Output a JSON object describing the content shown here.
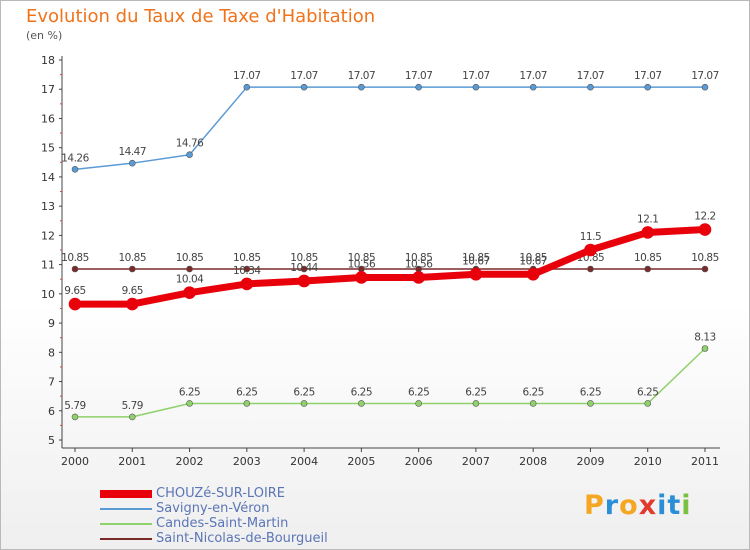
{
  "title": "Evolution du Taux de Taxe d'Habitation",
  "unit_label": "(en %)",
  "brand": {
    "letters": [
      "P",
      "r",
      "o",
      "x",
      "i",
      "t",
      "i"
    ],
    "colors": [
      "#f5a623",
      "#2a8fd6",
      "#f5a623",
      "#e23b2e",
      "#2a8fd6",
      "#2a8fd6",
      "#7ac142"
    ]
  },
  "chart_data": {
    "type": "line",
    "title": "Evolution du Taux de Taxe d'Habitation",
    "ylabel": "(en %)",
    "xlabel": "",
    "ylim": [
      5,
      18
    ],
    "y_ticks": [
      "5",
      "6",
      "7",
      "8",
      "9",
      "10",
      "11",
      "12",
      "13",
      "14",
      "15",
      "16",
      "17",
      "18"
    ],
    "x": [
      "2000",
      "2001",
      "2002",
      "2003",
      "2004",
      "2005",
      "2006",
      "2007",
      "2008",
      "2009",
      "2010",
      "2011"
    ],
    "grid": false,
    "legend_position": "bottom-left",
    "series": [
      {
        "name": "Savigny-en-Véron",
        "color": "#5b9bd5",
        "values": [
          14.26,
          14.47,
          14.76,
          17.07,
          17.07,
          17.07,
          17.07,
          17.07,
          17.07,
          17.07,
          17.07,
          17.07
        ],
        "labels": [
          "14.26",
          "14.47",
          "14.76",
          "17.07",
          "17.07",
          "17.07",
          "17.07",
          "17.07",
          "17.07",
          "17.07",
          "17.07",
          "17.07"
        ]
      },
      {
        "name": "Saint-Nicolas-de-Bourgueil",
        "color": "#7b2a2a",
        "values": [
          10.85,
          10.85,
          10.85,
          10.85,
          10.85,
          10.85,
          10.85,
          10.85,
          10.85,
          10.85,
          10.85,
          10.85
        ],
        "labels": [
          "10.85",
          "10.85",
          "10.85",
          "10.85",
          "10.85",
          "10.85",
          "10.85",
          "10.85",
          "10.85",
          "10.85",
          "10.85",
          "10.85"
        ]
      },
      {
        "name": "Candes-Saint-Martin",
        "color": "#8fd16a",
        "values": [
          5.79,
          5.79,
          6.25,
          6.25,
          6.25,
          6.25,
          6.25,
          6.25,
          6.25,
          6.25,
          6.25,
          8.13
        ],
        "labels": [
          "5.79",
          "5.79",
          "6.25",
          "6.25",
          "6.25",
          "6.25",
          "6.25",
          "6.25",
          "6.25",
          "6.25",
          "6.25",
          "8.13"
        ]
      },
      {
        "name": "CHOUZé-SUR-LOIRE",
        "color": "#e8000b",
        "values": [
          9.65,
          9.65,
          10.04,
          10.34,
          10.44,
          10.56,
          10.56,
          10.67,
          10.67,
          11.5,
          12.1,
          12.2
        ],
        "labels": [
          "9.65",
          "9.65",
          "10.04",
          "10.34",
          "10.44",
          "10.56",
          "10.56",
          "10.67",
          "10.67",
          "11.5",
          "12.1",
          "12.2"
        ]
      }
    ],
    "legend_order": [
      "CHOUZé-SUR-LOIRE",
      "Savigny-en-Véron",
      "Candes-Saint-Martin",
      "Saint-Nicolas-de-Bourgueil"
    ]
  }
}
